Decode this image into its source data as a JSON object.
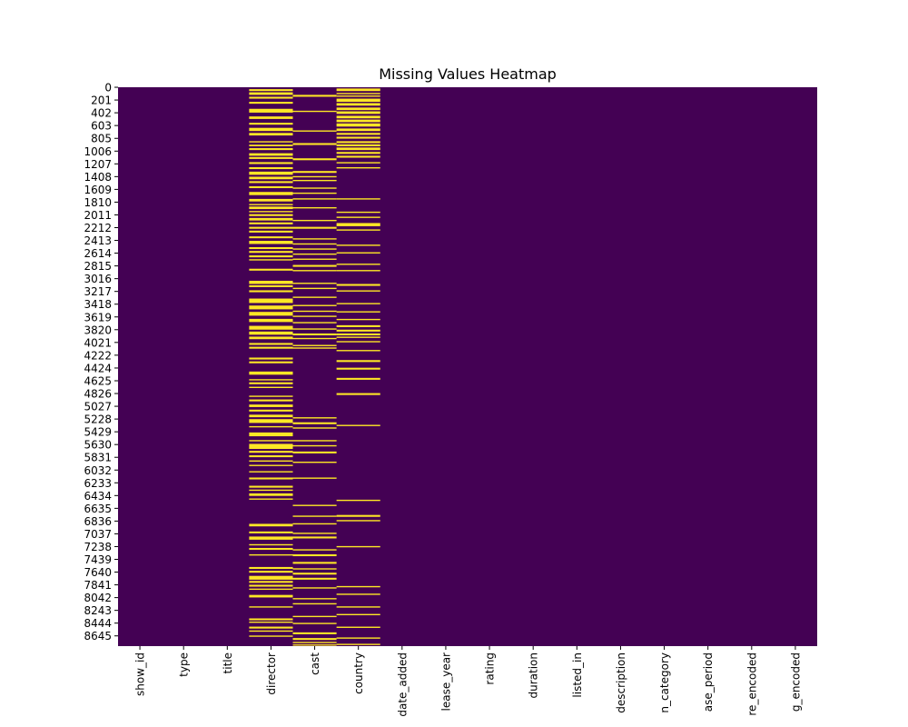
{
  "chart_data": {
    "type": "heatmap",
    "title": "Missing Values Heatmap",
    "xlabel": "",
    "ylabel": "",
    "y_range": [
      0,
      8807
    ],
    "y_tick_labels": [
      "0",
      "201",
      "402",
      "603",
      "805",
      "1006",
      "1207",
      "1408",
      "1609",
      "1810",
      "2011",
      "2212",
      "2413",
      "2614",
      "2815",
      "3016",
      "3217",
      "3418",
      "3619",
      "3820",
      "4021",
      "4222",
      "4424",
      "4625",
      "4826",
      "5027",
      "5228",
      "5429",
      "5630",
      "5831",
      "6032",
      "6233",
      "6434",
      "6635",
      "6836",
      "7037",
      "7238",
      "7439",
      "7640",
      "7841",
      "8042",
      "8243",
      "8444",
      "8645"
    ],
    "columns": [
      "show_id",
      "type",
      "title",
      "director",
      "cast",
      "country",
      "date_added",
      "release_year",
      "rating",
      "duration",
      "listed_in",
      "description",
      "duration_category",
      "release_period",
      "genre_encoded",
      "rating_encoded"
    ],
    "column_tick_labels": [
      "show_id",
      "type",
      "title",
      "director",
      "cast",
      "country",
      "date_added",
      "lease_year",
      "rating",
      "duration",
      "listed_in",
      "description",
      "n_category",
      "ase_period",
      "re_encoded",
      "g_encoded"
    ],
    "colors": {
      "present": "#440154",
      "missing": "#fde725",
      "text": "#000000"
    },
    "legend": "none",
    "grid": false,
    "missing_rows": {
      "director": [
        [
          30,
          60
        ],
        [
          80,
          120
        ],
        [
          150,
          180
        ],
        [
          230,
          260
        ],
        [
          340,
          400
        ],
        [
          460,
          500
        ],
        [
          560,
          590
        ],
        [
          640,
          690
        ],
        [
          720,
          760
        ],
        [
          850,
          870
        ],
        [
          905,
          930
        ],
        [
          960,
          990
        ],
        [
          1040,
          1080
        ],
        [
          1100,
          1130
        ],
        [
          1180,
          1210
        ],
        [
          1260,
          1290
        ],
        [
          1330,
          1380
        ],
        [
          1410,
          1450
        ],
        [
          1480,
          1510
        ],
        [
          1560,
          1590
        ],
        [
          1650,
          1700
        ],
        [
          1760,
          1800
        ],
        [
          1840,
          1860
        ],
        [
          1880,
          1920
        ],
        [
          1950,
          1970
        ],
        [
          2000,
          2030
        ],
        [
          2060,
          2100
        ],
        [
          2130,
          2160
        ],
        [
          2200,
          2230
        ],
        [
          2260,
          2290
        ],
        [
          2350,
          2380
        ],
        [
          2420,
          2470
        ],
        [
          2520,
          2550
        ],
        [
          2580,
          2610
        ],
        [
          2650,
          2680
        ],
        [
          2710,
          2730
        ],
        [
          2860,
          2890
        ],
        [
          3050,
          3100
        ],
        [
          3120,
          3150
        ],
        [
          3200,
          3230
        ],
        [
          3330,
          3400
        ],
        [
          3440,
          3500
        ],
        [
          3540,
          3600
        ],
        [
          3650,
          3700
        ],
        [
          3760,
          3820
        ],
        [
          3850,
          3900
        ],
        [
          3930,
          3970
        ],
        [
          4030,
          4060
        ],
        [
          4090,
          4120
        ],
        [
          4260,
          4290
        ],
        [
          4320,
          4350
        ],
        [
          4480,
          4530
        ],
        [
          4600,
          4620
        ],
        [
          4650,
          4680
        ],
        [
          4720,
          4740
        ],
        [
          4860,
          4880
        ],
        [
          4920,
          4950
        ],
        [
          5000,
          5040
        ],
        [
          5080,
          5110
        ],
        [
          5160,
          5200
        ],
        [
          5230,
          5290
        ],
        [
          5340,
          5360
        ],
        [
          5440,
          5500
        ],
        [
          5560,
          5580
        ],
        [
          5620,
          5700
        ],
        [
          5730,
          5760
        ],
        [
          5800,
          5830
        ],
        [
          5880,
          5900
        ],
        [
          5950,
          5970
        ],
        [
          6050,
          6070
        ],
        [
          6150,
          6180
        ],
        [
          6280,
          6310
        ],
        [
          6340,
          6360
        ],
        [
          6400,
          6440
        ],
        [
          6480,
          6500
        ],
        [
          6880,
          6920
        ],
        [
          7000,
          7030
        ],
        [
          7080,
          7130
        ],
        [
          7200,
          7220
        ],
        [
          7260,
          7290
        ],
        [
          7360,
          7380
        ],
        [
          7560,
          7590
        ],
        [
          7620,
          7650
        ],
        [
          7700,
          7760
        ],
        [
          7780,
          7810
        ],
        [
          7840,
          7870
        ],
        [
          7900,
          7920
        ],
        [
          8000,
          8040
        ],
        [
          8180,
          8200
        ],
        [
          8370,
          8400
        ],
        [
          8420,
          8440
        ],
        [
          8500,
          8530
        ],
        [
          8560,
          8580
        ],
        [
          8640,
          8660
        ]
      ],
      "cast": [
        [
          120,
          150
        ],
        [
          370,
          390
        ],
        [
          680,
          700
        ],
        [
          880,
          910
        ],
        [
          1120,
          1150
        ],
        [
          1320,
          1350
        ],
        [
          1400,
          1420
        ],
        [
          1460,
          1480
        ],
        [
          1580,
          1600
        ],
        [
          1660,
          1680
        ],
        [
          1750,
          1770
        ],
        [
          1890,
          1910
        ],
        [
          2090,
          2110
        ],
        [
          2200,
          2230
        ],
        [
          2380,
          2400
        ],
        [
          2460,
          2480
        ],
        [
          2540,
          2560
        ],
        [
          2620,
          2640
        ],
        [
          2700,
          2720
        ],
        [
          2800,
          2830
        ],
        [
          2880,
          2900
        ],
        [
          3080,
          3100
        ],
        [
          3160,
          3180
        ],
        [
          3300,
          3320
        ],
        [
          3430,
          3450
        ],
        [
          3520,
          3540
        ],
        [
          3600,
          3620
        ],
        [
          3700,
          3720
        ],
        [
          3800,
          3820
        ],
        [
          3880,
          3910
        ],
        [
          3950,
          3970
        ],
        [
          4060,
          4080
        ],
        [
          4100,
          4120
        ],
        [
          5200,
          5220
        ],
        [
          5280,
          5310
        ],
        [
          5360,
          5380
        ],
        [
          5560,
          5580
        ],
        [
          5640,
          5660
        ],
        [
          5740,
          5770
        ],
        [
          5900,
          5920
        ],
        [
          6150,
          6170
        ],
        [
          6580,
          6600
        ],
        [
          6750,
          6770
        ],
        [
          6870,
          6890
        ],
        [
          7020,
          7040
        ],
        [
          7080,
          7110
        ],
        [
          7280,
          7300
        ],
        [
          7360,
          7390
        ],
        [
          7480,
          7510
        ],
        [
          7580,
          7600
        ],
        [
          7650,
          7680
        ],
        [
          7730,
          7760
        ],
        [
          7880,
          7900
        ],
        [
          8050,
          8070
        ],
        [
          8130,
          8150
        ],
        [
          8330,
          8350
        ],
        [
          8440,
          8460
        ],
        [
          8590,
          8620
        ],
        [
          8680,
          8710
        ],
        [
          8740,
          8760
        ],
        [
          8780,
          8800
        ]
      ],
      "country": [
        [
          20,
          60
        ],
        [
          90,
          110
        ],
        [
          130,
          150
        ],
        [
          180,
          230
        ],
        [
          250,
          290
        ],
        [
          320,
          360
        ],
        [
          380,
          420
        ],
        [
          450,
          490
        ],
        [
          510,
          550
        ],
        [
          570,
          620
        ],
        [
          650,
          690
        ],
        [
          720,
          750
        ],
        [
          780,
          810
        ],
        [
          850,
          880
        ],
        [
          900,
          930
        ],
        [
          950,
          990
        ],
        [
          1020,
          1050
        ],
        [
          1080,
          1110
        ],
        [
          1180,
          1200
        ],
        [
          1260,
          1280
        ],
        [
          1750,
          1770
        ],
        [
          1960,
          1980
        ],
        [
          2040,
          2060
        ],
        [
          2140,
          2190
        ],
        [
          2240,
          2260
        ],
        [
          2480,
          2500
        ],
        [
          2600,
          2620
        ],
        [
          2780,
          2800
        ],
        [
          2880,
          2900
        ],
        [
          3100,
          3130
        ],
        [
          3200,
          3220
        ],
        [
          3400,
          3420
        ],
        [
          3530,
          3550
        ],
        [
          3650,
          3670
        ],
        [
          3750,
          3780
        ],
        [
          3820,
          3850
        ],
        [
          3880,
          3910
        ],
        [
          3930,
          3950
        ],
        [
          4000,
          4020
        ],
        [
          4140,
          4160
        ],
        [
          4300,
          4330
        ],
        [
          4420,
          4450
        ],
        [
          4580,
          4610
        ],
        [
          4820,
          4850
        ],
        [
          5320,
          5340
        ],
        [
          6500,
          6520
        ],
        [
          6740,
          6770
        ],
        [
          6820,
          6840
        ],
        [
          7230,
          7250
        ],
        [
          7860,
          7880
        ],
        [
          7980,
          8000
        ],
        [
          8180,
          8200
        ],
        [
          8300,
          8320
        ],
        [
          8500,
          8520
        ],
        [
          8670,
          8690
        ],
        [
          8770,
          8790
        ]
      ]
    }
  }
}
